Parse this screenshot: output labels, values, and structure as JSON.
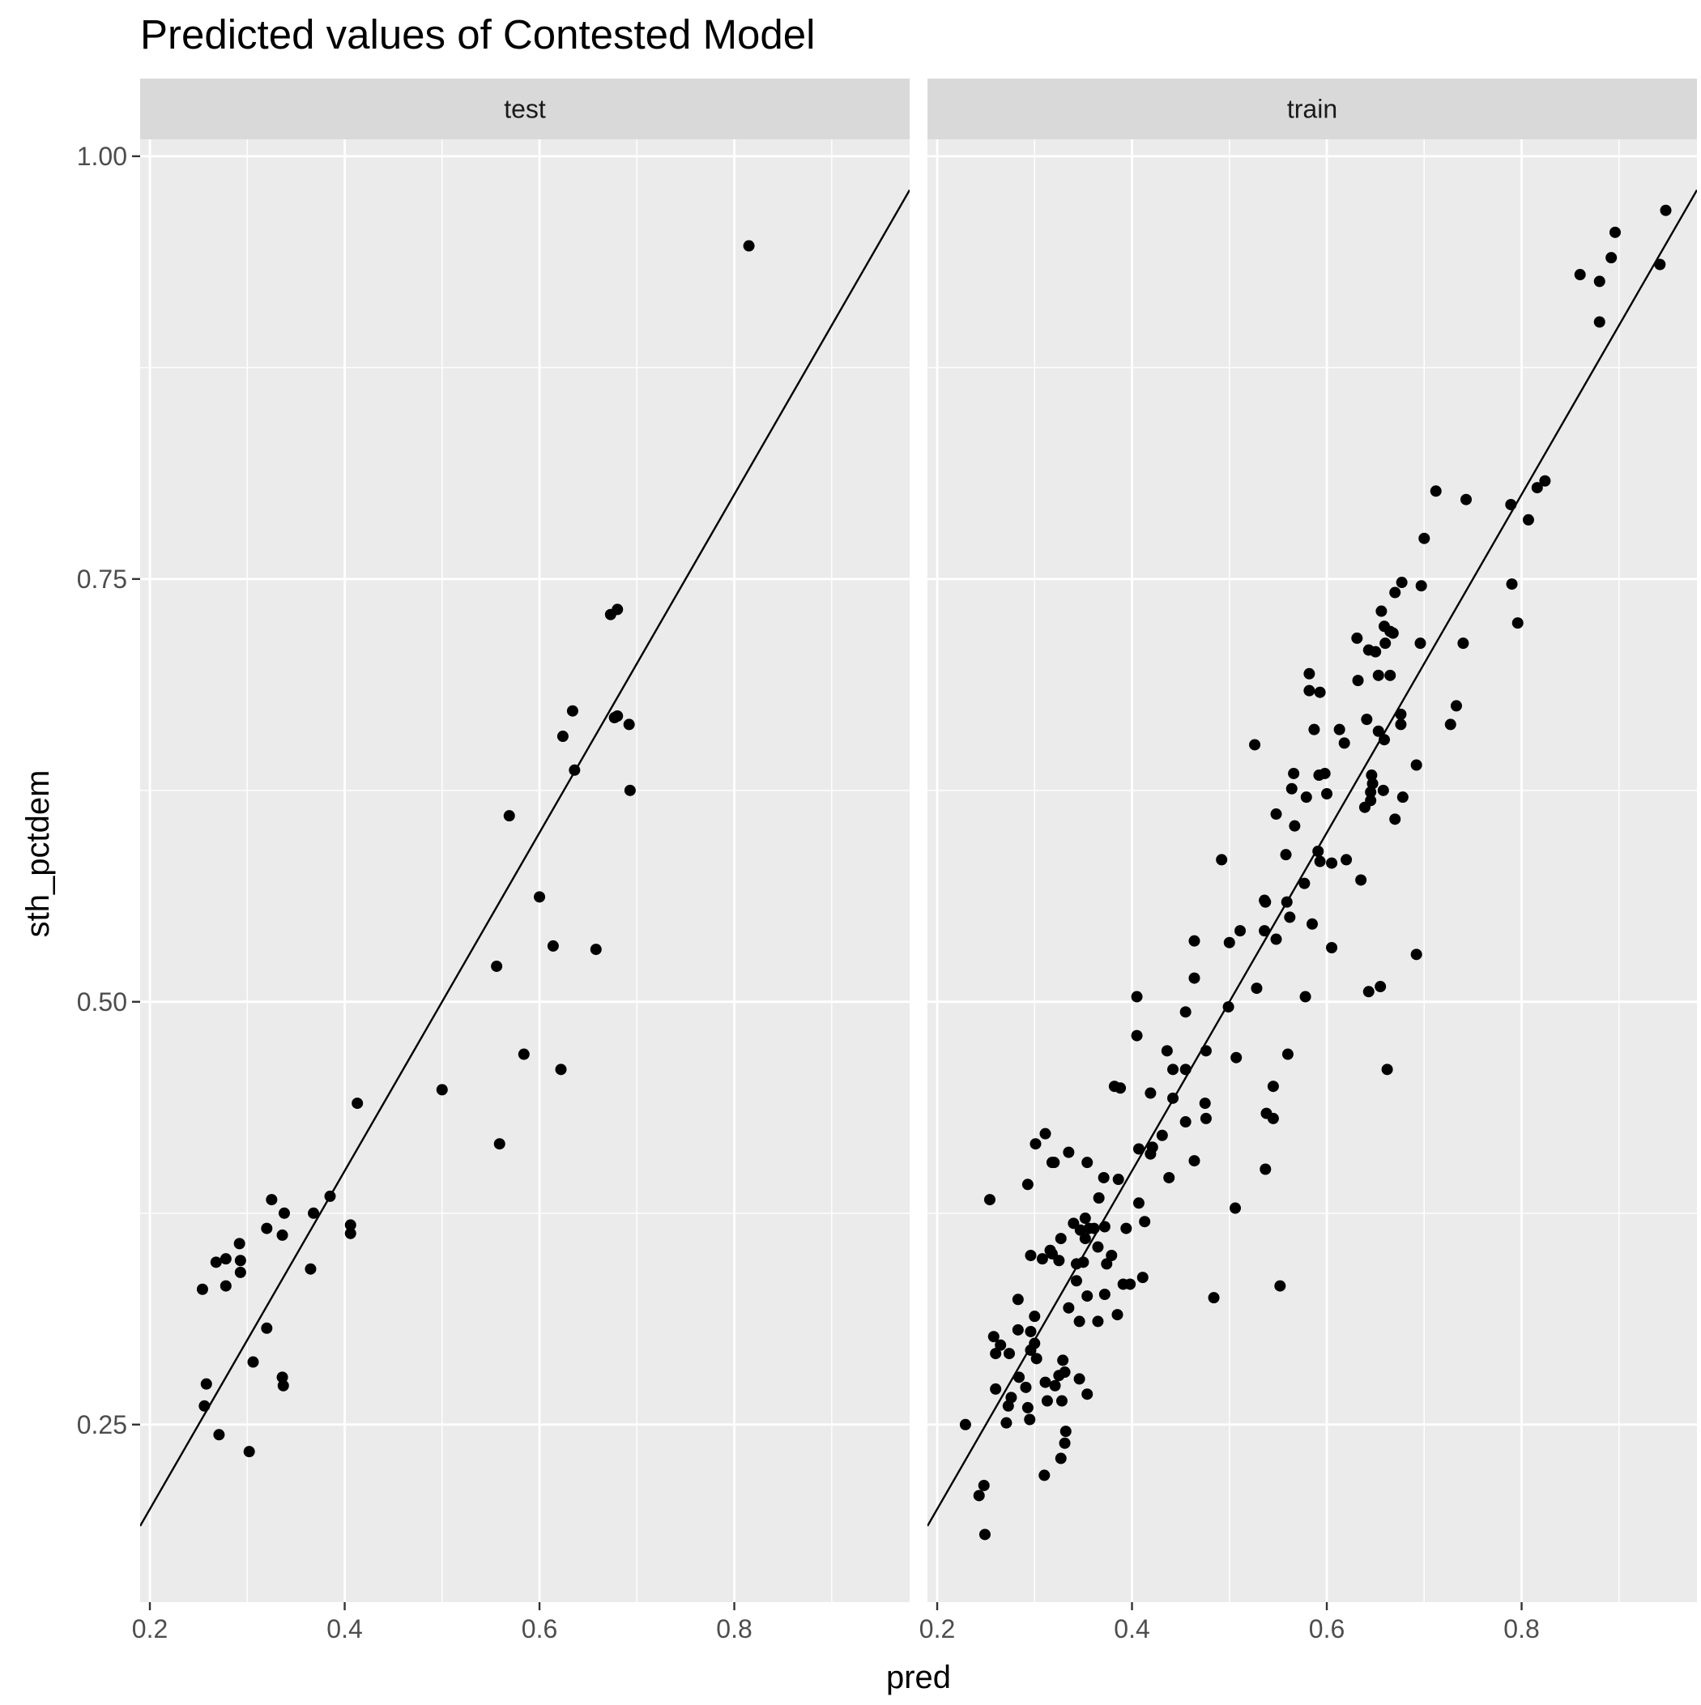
{
  "chart_data": {
    "type": "scatter",
    "title": "Predicted values of Contested Model",
    "xlabel": "pred",
    "ylabel": "sth_pctdem",
    "xlim": [
      0.19,
      0.98
    ],
    "ylim": [
      0.145,
      1.01
    ],
    "x_ticks": [
      0.2,
      0.4,
      0.6,
      0.8
    ],
    "x_tick_labels": [
      "0.2",
      "0.4",
      "0.6",
      "0.8"
    ],
    "y_ticks": [
      0.25,
      0.5,
      0.75,
      1.0
    ],
    "y_tick_labels": [
      "0.25",
      "0.50",
      "0.75",
      "1.00"
    ],
    "grid": true,
    "reference_line": {
      "slope": 1,
      "intercept": 0
    },
    "panels": [
      {
        "label": "test",
        "points": [
          [
            0.815,
            0.947
          ],
          [
            0.68,
            0.732
          ],
          [
            0.673,
            0.729
          ],
          [
            0.692,
            0.664
          ],
          [
            0.68,
            0.669
          ],
          [
            0.677,
            0.668
          ],
          [
            0.634,
            0.672
          ],
          [
            0.624,
            0.657
          ],
          [
            0.636,
            0.637
          ],
          [
            0.693,
            0.625
          ],
          [
            0.569,
            0.61
          ],
          [
            0.6,
            0.562
          ],
          [
            0.614,
            0.533
          ],
          [
            0.658,
            0.531
          ],
          [
            0.556,
            0.521
          ],
          [
            0.584,
            0.469
          ],
          [
            0.622,
            0.46
          ],
          [
            0.5,
            0.448
          ],
          [
            0.413,
            0.44
          ],
          [
            0.559,
            0.416
          ],
          [
            0.385,
            0.385
          ],
          [
            0.325,
            0.383
          ],
          [
            0.338,
            0.375
          ],
          [
            0.368,
            0.375
          ],
          [
            0.406,
            0.368
          ],
          [
            0.32,
            0.366
          ],
          [
            0.336,
            0.362
          ],
          [
            0.406,
            0.363
          ],
          [
            0.292,
            0.357
          ],
          [
            0.278,
            0.348
          ],
          [
            0.268,
            0.346
          ],
          [
            0.293,
            0.347
          ],
          [
            0.365,
            0.342
          ],
          [
            0.293,
            0.34
          ],
          [
            0.278,
            0.332
          ],
          [
            0.254,
            0.33
          ],
          [
            0.32,
            0.307
          ],
          [
            0.306,
            0.287
          ],
          [
            0.336,
            0.278
          ],
          [
            0.337,
            0.273
          ],
          [
            0.258,
            0.274
          ],
          [
            0.256,
            0.261
          ],
          [
            0.271,
            0.244
          ],
          [
            0.302,
            0.234
          ]
        ]
      },
      {
        "label": "train",
        "points": [
          [
            0.948,
            0.968
          ],
          [
            0.896,
            0.955
          ],
          [
            0.892,
            0.94
          ],
          [
            0.942,
            0.936
          ],
          [
            0.86,
            0.93
          ],
          [
            0.88,
            0.926
          ],
          [
            0.88,
            0.902
          ],
          [
            0.824,
            0.808
          ],
          [
            0.816,
            0.804
          ],
          [
            0.712,
            0.802
          ],
          [
            0.743,
            0.797
          ],
          [
            0.789,
            0.794
          ],
          [
            0.807,
            0.785
          ],
          [
            0.7,
            0.774
          ],
          [
            0.677,
            0.748
          ],
          [
            0.697,
            0.746
          ],
          [
            0.79,
            0.747
          ],
          [
            0.67,
            0.742
          ],
          [
            0.656,
            0.731
          ],
          [
            0.659,
            0.722
          ],
          [
            0.665,
            0.719
          ],
          [
            0.668,
            0.718
          ],
          [
            0.796,
            0.724
          ],
          [
            0.631,
            0.715
          ],
          [
            0.66,
            0.712
          ],
          [
            0.696,
            0.712
          ],
          [
            0.74,
            0.712
          ],
          [
            0.65,
            0.707
          ],
          [
            0.643,
            0.708
          ],
          [
            0.582,
            0.694
          ],
          [
            0.665,
            0.693
          ],
          [
            0.653,
            0.693
          ],
          [
            0.632,
            0.69
          ],
          [
            0.582,
            0.684
          ],
          [
            0.593,
            0.683
          ],
          [
            0.733,
            0.675
          ],
          [
            0.676,
            0.67
          ],
          [
            0.641,
            0.667
          ],
          [
            0.676,
            0.664
          ],
          [
            0.727,
            0.664
          ],
          [
            0.587,
            0.661
          ],
          [
            0.613,
            0.661
          ],
          [
            0.653,
            0.66
          ],
          [
            0.659,
            0.655
          ],
          [
            0.618,
            0.653
          ],
          [
            0.526,
            0.652
          ],
          [
            0.692,
            0.64
          ],
          [
            0.566,
            0.635
          ],
          [
            0.592,
            0.634
          ],
          [
            0.598,
            0.635
          ],
          [
            0.646,
            0.634
          ],
          [
            0.647,
            0.629
          ],
          [
            0.564,
            0.626
          ],
          [
            0.579,
            0.621
          ],
          [
            0.6,
            0.623
          ],
          [
            0.645,
            0.624
          ],
          [
            0.658,
            0.625
          ],
          [
            0.678,
            0.621
          ],
          [
            0.645,
            0.619
          ],
          [
            0.639,
            0.615
          ],
          [
            0.548,
            0.611
          ],
          [
            0.67,
            0.608
          ],
          [
            0.567,
            0.604
          ],
          [
            0.558,
            0.587
          ],
          [
            0.591,
            0.589
          ],
          [
            0.492,
            0.584
          ],
          [
            0.593,
            0.583
          ],
          [
            0.605,
            0.582
          ],
          [
            0.62,
            0.584
          ],
          [
            0.635,
            0.572
          ],
          [
            0.577,
            0.57
          ],
          [
            0.536,
            0.56
          ],
          [
            0.537,
            0.559
          ],
          [
            0.559,
            0.559
          ],
          [
            0.562,
            0.55
          ],
          [
            0.585,
            0.546
          ],
          [
            0.536,
            0.542
          ],
          [
            0.511,
            0.542
          ],
          [
            0.548,
            0.537
          ],
          [
            0.464,
            0.536
          ],
          [
            0.5,
            0.535
          ],
          [
            0.605,
            0.532
          ],
          [
            0.692,
            0.528
          ],
          [
            0.464,
            0.514
          ],
          [
            0.528,
            0.508
          ],
          [
            0.655,
            0.509
          ],
          [
            0.643,
            0.506
          ],
          [
            0.578,
            0.503
          ],
          [
            0.405,
            0.503
          ],
          [
            0.499,
            0.497
          ],
          [
            0.455,
            0.494
          ],
          [
            0.405,
            0.48
          ],
          [
            0.436,
            0.471
          ],
          [
            0.476,
            0.471
          ],
          [
            0.56,
            0.469
          ],
          [
            0.507,
            0.467
          ],
          [
            0.442,
            0.46
          ],
          [
            0.455,
            0.46
          ],
          [
            0.662,
            0.46
          ],
          [
            0.382,
            0.45
          ],
          [
            0.388,
            0.449
          ],
          [
            0.545,
            0.45
          ],
          [
            0.419,
            0.446
          ],
          [
            0.442,
            0.443
          ],
          [
            0.475,
            0.44
          ],
          [
            0.538,
            0.434
          ],
          [
            0.545,
            0.431
          ],
          [
            0.476,
            0.431
          ],
          [
            0.455,
            0.429
          ],
          [
            0.431,
            0.421
          ],
          [
            0.311,
            0.422
          ],
          [
            0.301,
            0.416
          ],
          [
            0.407,
            0.413
          ],
          [
            0.421,
            0.414
          ],
          [
            0.419,
            0.41
          ],
          [
            0.335,
            0.411
          ],
          [
            0.318,
            0.405
          ],
          [
            0.32,
            0.405
          ],
          [
            0.354,
            0.405
          ],
          [
            0.464,
            0.406
          ],
          [
            0.371,
            0.396
          ],
          [
            0.386,
            0.395
          ],
          [
            0.438,
            0.396
          ],
          [
            0.537,
            0.401
          ],
          [
            0.293,
            0.392
          ],
          [
            0.254,
            0.383
          ],
          [
            0.366,
            0.384
          ],
          [
            0.407,
            0.381
          ],
          [
            0.506,
            0.378
          ],
          [
            0.352,
            0.372
          ],
          [
            0.34,
            0.369
          ],
          [
            0.372,
            0.367
          ],
          [
            0.347,
            0.365
          ],
          [
            0.356,
            0.366
          ],
          [
            0.361,
            0.366
          ],
          [
            0.394,
            0.366
          ],
          [
            0.413,
            0.37
          ],
          [
            0.327,
            0.36
          ],
          [
            0.352,
            0.36
          ],
          [
            0.365,
            0.355
          ],
          [
            0.316,
            0.353
          ],
          [
            0.318,
            0.351
          ],
          [
            0.296,
            0.35
          ],
          [
            0.379,
            0.35
          ],
          [
            0.325,
            0.347
          ],
          [
            0.343,
            0.345
          ],
          [
            0.35,
            0.346
          ],
          [
            0.374,
            0.345
          ],
          [
            0.308,
            0.348
          ],
          [
            0.343,
            0.335
          ],
          [
            0.391,
            0.333
          ],
          [
            0.398,
            0.333
          ],
          [
            0.411,
            0.337
          ],
          [
            0.552,
            0.332
          ],
          [
            0.354,
            0.326
          ],
          [
            0.372,
            0.327
          ],
          [
            0.283,
            0.324
          ],
          [
            0.484,
            0.325
          ],
          [
            0.335,
            0.319
          ],
          [
            0.385,
            0.315
          ],
          [
            0.3,
            0.314
          ],
          [
            0.346,
            0.311
          ],
          [
            0.365,
            0.311
          ],
          [
            0.283,
            0.306
          ],
          [
            0.296,
            0.305
          ],
          [
            0.258,
            0.302
          ],
          [
            0.3,
            0.298
          ],
          [
            0.265,
            0.297
          ],
          [
            0.296,
            0.294
          ],
          [
            0.26,
            0.292
          ],
          [
            0.274,
            0.292
          ],
          [
            0.302,
            0.289
          ],
          [
            0.329,
            0.288
          ],
          [
            0.331,
            0.281
          ],
          [
            0.325,
            0.279
          ],
          [
            0.284,
            0.278
          ],
          [
            0.346,
            0.277
          ],
          [
            0.311,
            0.275
          ],
          [
            0.321,
            0.273
          ],
          [
            0.291,
            0.272
          ],
          [
            0.26,
            0.271
          ],
          [
            0.354,
            0.268
          ],
          [
            0.276,
            0.266
          ],
          [
            0.313,
            0.264
          ],
          [
            0.328,
            0.264
          ],
          [
            0.273,
            0.261
          ],
          [
            0.293,
            0.26
          ],
          [
            0.295,
            0.253
          ],
          [
            0.271,
            0.251
          ],
          [
            0.229,
            0.25
          ],
          [
            0.332,
            0.246
          ],
          [
            0.331,
            0.239
          ],
          [
            0.327,
            0.23
          ],
          [
            0.31,
            0.22
          ],
          [
            0.248,
            0.214
          ],
          [
            0.243,
            0.208
          ],
          [
            0.249,
            0.185
          ]
        ]
      }
    ]
  }
}
